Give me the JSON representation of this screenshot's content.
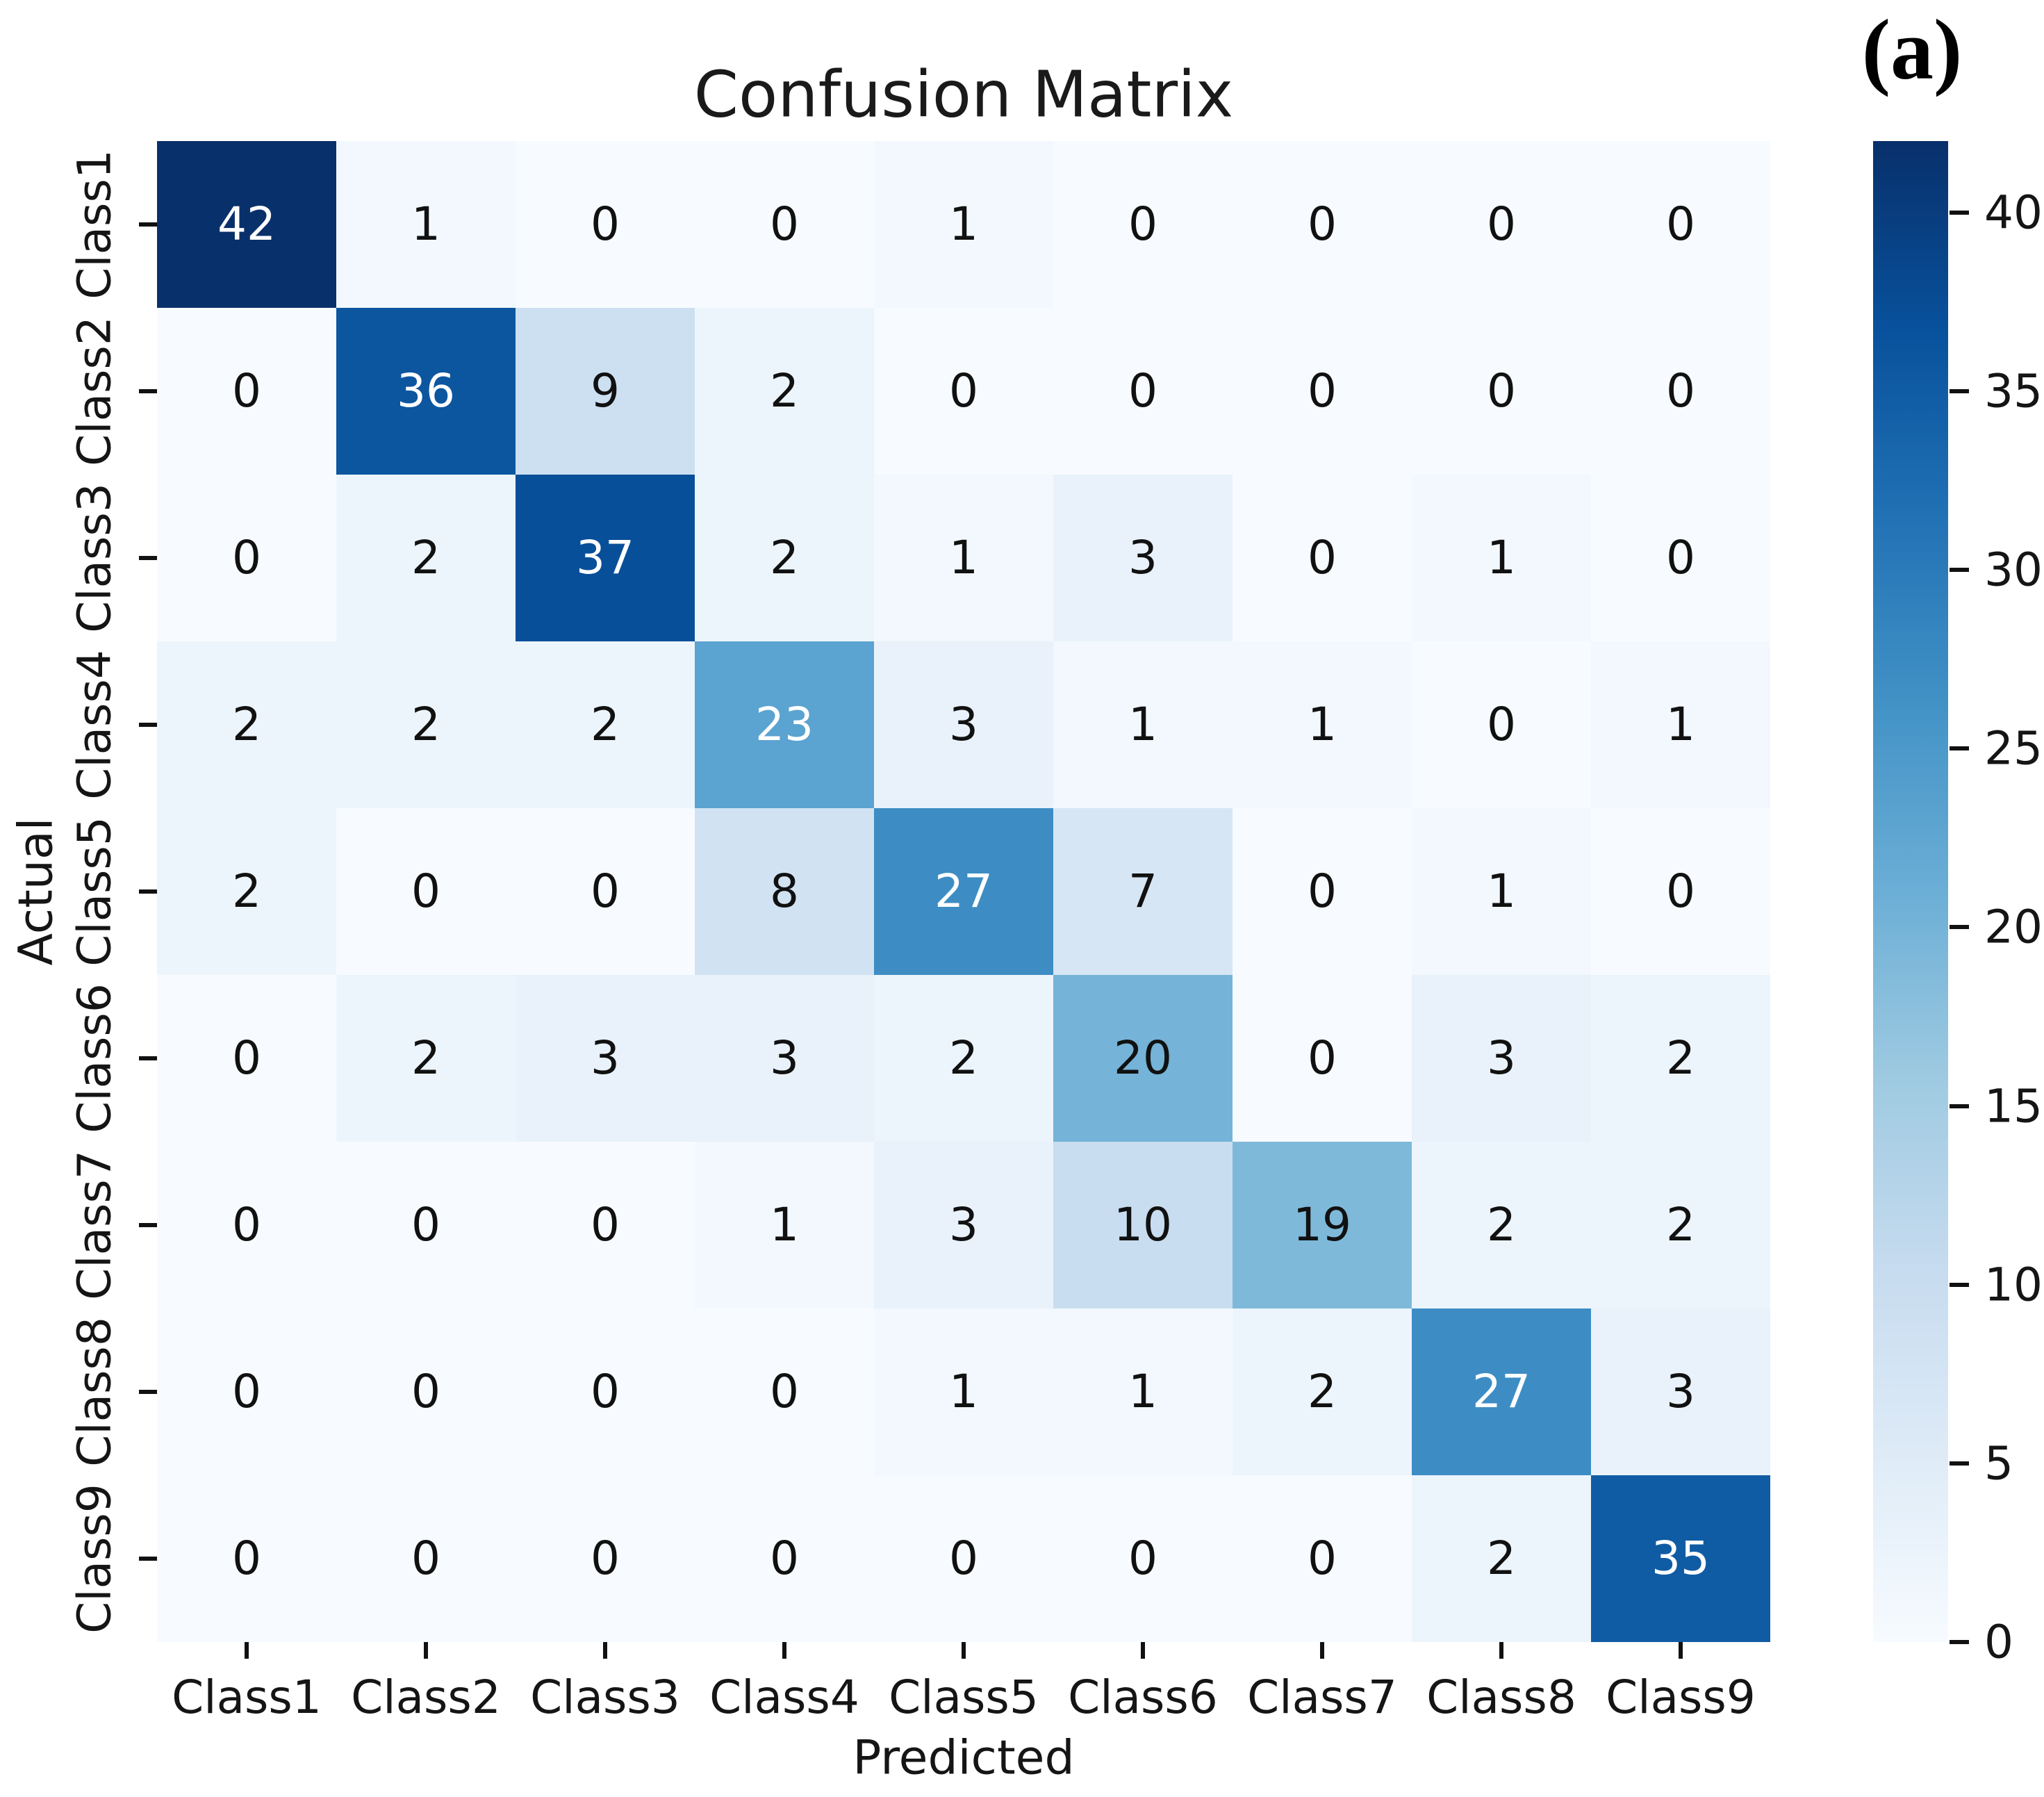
{
  "figure_label": "(a)",
  "chart_data": {
    "type": "heatmap",
    "title": "Confusion Matrix",
    "xlabel": "Predicted",
    "ylabel": "Actual",
    "x_categories": [
      "Class1",
      "Class2",
      "Class3",
      "Class4",
      "Class5",
      "Class6",
      "Class7",
      "Class8",
      "Class9"
    ],
    "y_categories": [
      "Class1",
      "Class2",
      "Class3",
      "Class4",
      "Class5",
      "Class6",
      "Class7",
      "Class8",
      "Class9"
    ],
    "values": [
      [
        42,
        1,
        0,
        0,
        1,
        0,
        0,
        0,
        0
      ],
      [
        0,
        36,
        9,
        2,
        0,
        0,
        0,
        0,
        0
      ],
      [
        0,
        2,
        37,
        2,
        1,
        3,
        0,
        1,
        0
      ],
      [
        2,
        2,
        2,
        23,
        3,
        1,
        1,
        0,
        1
      ],
      [
        2,
        0,
        0,
        8,
        27,
        7,
        0,
        1,
        0
      ],
      [
        0,
        2,
        3,
        3,
        2,
        20,
        0,
        3,
        2
      ],
      [
        0,
        0,
        0,
        1,
        3,
        10,
        19,
        2,
        2
      ],
      [
        0,
        0,
        0,
        0,
        1,
        1,
        2,
        27,
        3
      ],
      [
        0,
        0,
        0,
        0,
        0,
        0,
        0,
        2,
        35
      ]
    ],
    "vmin": 0,
    "vmax": 42,
    "colormap": "Blues",
    "colormap_stops": [
      [
        "#f7fbff",
        0
      ],
      [
        "#deebf7",
        0.125
      ],
      [
        "#c6dbef",
        0.25
      ],
      [
        "#9ecae1",
        0.375
      ],
      [
        "#6baed6",
        0.5
      ],
      [
        "#4292c6",
        0.625
      ],
      [
        "#2171b5",
        0.75
      ],
      [
        "#08519c",
        0.875
      ],
      [
        "#08306b",
        1
      ]
    ],
    "colorbar_ticks": [
      0,
      5,
      10,
      15,
      20,
      25,
      30,
      35,
      40
    ],
    "annotation_colors": {
      "light": "#ffffff",
      "dark": "#111111"
    },
    "legend_position": "right",
    "grid": false
  }
}
